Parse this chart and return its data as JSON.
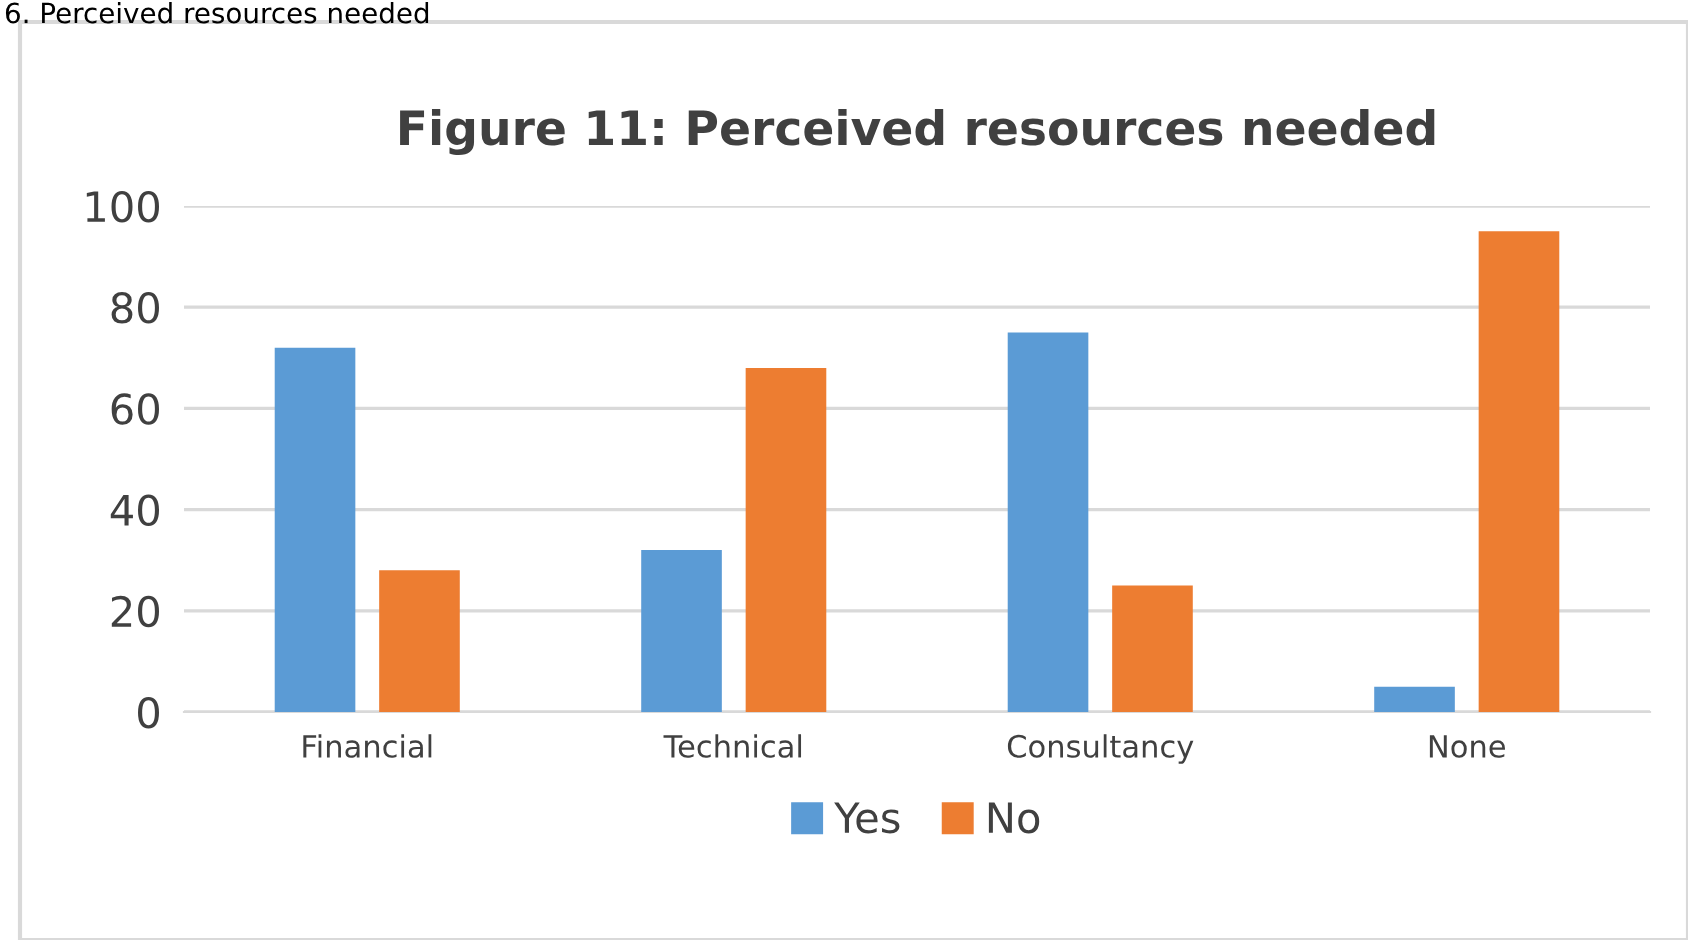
{
  "chart_data": {
    "type": "bar",
    "title": "Figure 11: Perceived resources needed",
    "annotations": [
      "6. Perceived resources needed"
    ],
    "categories": [
      "Financial",
      "Technical",
      "Consultancy",
      "None"
    ],
    "series": [
      {
        "name": "Yes",
        "color": "#5b9bd5",
        "values": [
          72,
          32,
          75,
          5
        ]
      },
      {
        "name": "No",
        "color": "#ed7d31",
        "values": [
          28,
          68,
          25,
          95
        ]
      }
    ],
    "ylim": [
      0,
      100
    ],
    "yticks": [
      0,
      20,
      40,
      60,
      80,
      100
    ],
    "grid": "y",
    "legend": "bottom"
  }
}
